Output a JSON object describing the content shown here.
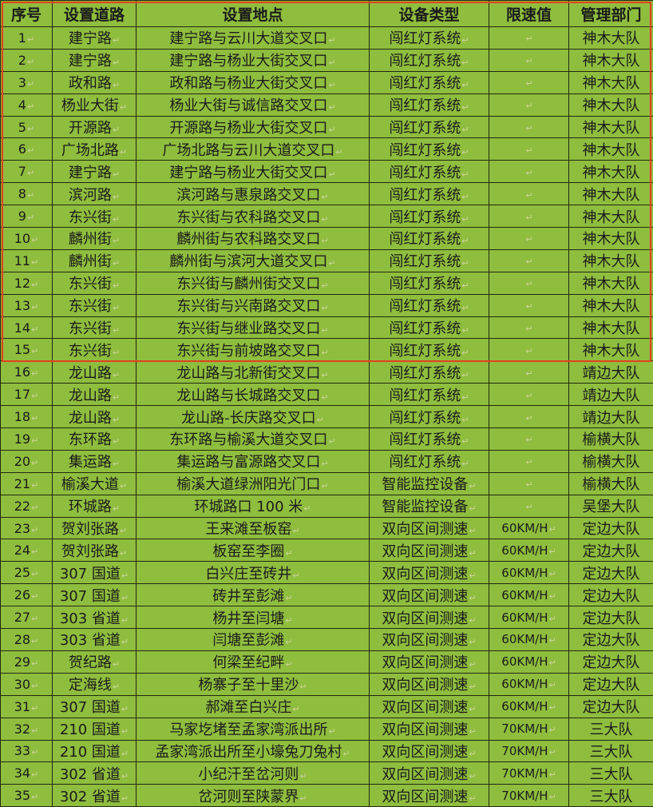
{
  "table": {
    "headers": [
      "序号",
      "设置道路",
      "设置地点",
      "设备类型",
      "限速值",
      "管理部门"
    ],
    "rows": [
      [
        "1",
        "建宁路",
        "建宁路与云川大道交叉口",
        "闯红灯系统",
        "",
        "神木大队"
      ],
      [
        "2",
        "建宁路",
        "建宁路与杨业大街交叉口",
        "闯红灯系统",
        "",
        "神木大队"
      ],
      [
        "3",
        "政和路",
        "政和路与杨业大街交叉口",
        "闯红灯系统",
        "",
        "神木大队"
      ],
      [
        "4",
        "杨业大街",
        "杨业大街与诚信路交叉口",
        "闯红灯系统",
        "",
        "神木大队"
      ],
      [
        "5",
        "开源路",
        "开源路与杨业大街交叉口",
        "闯红灯系统",
        "",
        "神木大队"
      ],
      [
        "6",
        "广场北路",
        "广场北路与云川大道交叉口",
        "闯红灯系统",
        "",
        "神木大队"
      ],
      [
        "7",
        "建宁路",
        "建宁路与杨业大街交叉口",
        "闯红灯系统",
        "",
        "神木大队"
      ],
      [
        "8",
        "滨河路",
        "滨河路与惠泉路交叉口",
        "闯红灯系统",
        "",
        "神木大队"
      ],
      [
        "9",
        "东兴街",
        "东兴街与农科路交叉口",
        "闯红灯系统",
        "",
        "神木大队"
      ],
      [
        "10",
        "麟州街",
        "麟州街与农科路交叉口",
        "闯红灯系统",
        "",
        "神木大队"
      ],
      [
        "11",
        "麟州街",
        "麟州街与滨河大道交叉口",
        "闯红灯系统",
        "",
        "神木大队"
      ],
      [
        "12",
        "东兴街",
        "东兴街与麟州街交叉口",
        "闯红灯系统",
        "",
        "神木大队"
      ],
      [
        "13",
        "东兴街",
        "东兴街与兴南路交叉口",
        "闯红灯系统",
        "",
        "神木大队"
      ],
      [
        "14",
        "东兴街",
        "东兴街与继业路交叉口",
        "闯红灯系统",
        "",
        "神木大队"
      ],
      [
        "15",
        "东兴街",
        "东兴街与前坡路交叉口",
        "闯红灯系统",
        "",
        "神木大队"
      ],
      [
        "16",
        "龙山路",
        "龙山路与北新街交叉口",
        "闯红灯系统",
        "",
        "靖边大队"
      ],
      [
        "17",
        "龙山路",
        "龙山路与长城路交叉口",
        "闯红灯系统",
        "",
        "靖边大队"
      ],
      [
        "18",
        "龙山路",
        "龙山路-长庆路交叉口",
        "闯红灯系统",
        "",
        "靖边大队"
      ],
      [
        "19",
        "东环路",
        "东环路与榆溪大道交叉口",
        "闯红灯系统",
        "",
        "榆横大队"
      ],
      [
        "20",
        "集运路",
        "集运路与富源路交叉口",
        "闯红灯系统",
        "",
        "榆横大队"
      ],
      [
        "21",
        "榆溪大道",
        "榆溪大道绿洲阳光门口",
        "智能监控设备",
        "",
        "榆横大队"
      ],
      [
        "22",
        "环城路",
        "环城路口 100 米",
        "智能监控设备",
        "",
        "吴堡大队"
      ],
      [
        "23",
        "贺刘张路",
        "王来滩至板窑",
        "双向区间测速",
        "60KM/H",
        "定边大队"
      ],
      [
        "24",
        "贺刘张路",
        "板窑至李圈",
        "双向区间测速",
        "60KM/H",
        "定边大队"
      ],
      [
        "25",
        "307 国道",
        "白兴庄至砖井",
        "双向区间测速",
        "60KM/H",
        "定边大队"
      ],
      [
        "26",
        "307 国道",
        "砖井至彭滩",
        "双向区间测速",
        "60KM/H",
        "定边大队"
      ],
      [
        "27",
        "303 省道",
        "杨井至闫塘",
        "双向区间测速",
        "60KM/H",
        "定边大队"
      ],
      [
        "28",
        "303 省道",
        "闫塘至彭滩",
        "双向区间测速",
        "60KM/H",
        "定边大队"
      ],
      [
        "29",
        "贺纪路",
        "何梁至纪畔",
        "双向区间测速",
        "60KM/H",
        "定边大队"
      ],
      [
        "30",
        "定海线",
        "杨寨子至十里沙",
        "双向区间测速",
        "60KM/H",
        "定边大队"
      ],
      [
        "31",
        "307 国道",
        "郝滩至白兴庄",
        "双向区间测速",
        "60KM/H",
        "定边大队"
      ],
      [
        "32",
        "210 国道",
        "马家圪堵至孟家湾派出所",
        "双向区间测速",
        "70KM/H",
        "三大队"
      ],
      [
        "33",
        "210 国道",
        "孟家湾派出所至小壕兔刀兔村",
        "双向区间测速",
        "70KM/H",
        "三大队"
      ],
      [
        "34",
        "302 省道",
        "小纪汗至岔河则",
        "双向区间测速",
        "70KM/H",
        "三大队"
      ],
      [
        "35",
        "302 省道",
        "岔河则至陕蒙界",
        "双向区间测速",
        "70KM/H",
        "三大队"
      ]
    ],
    "paragraph_mark": "↵",
    "highlight_rows": 15,
    "colors": {
      "background": "#8fbd3e",
      "highlight_border": "#e2401f",
      "grid": "#1f2a10"
    }
  }
}
